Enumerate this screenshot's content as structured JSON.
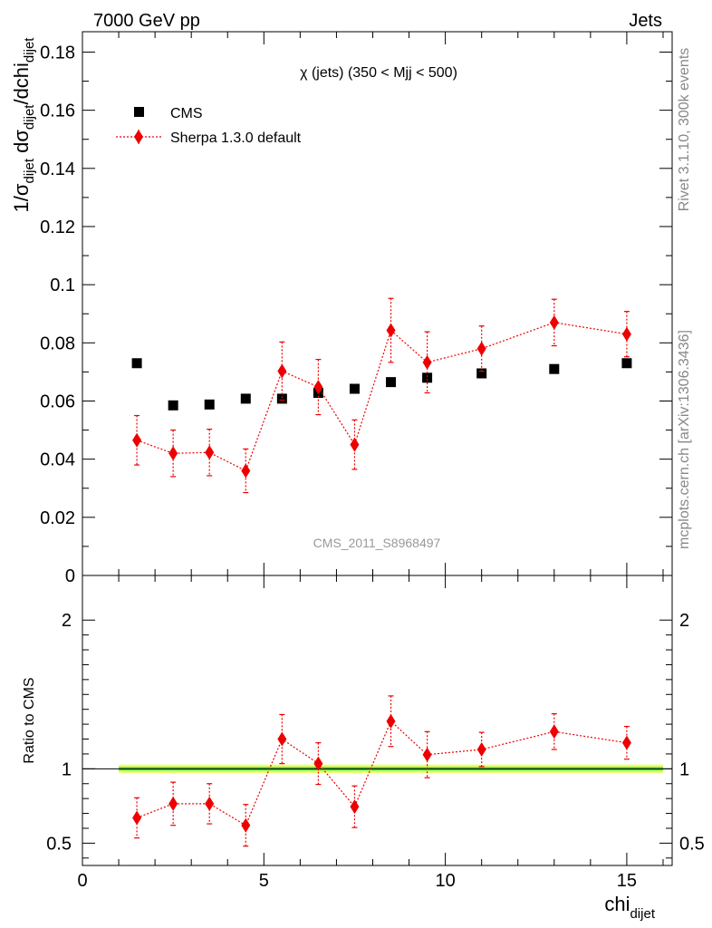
{
  "header": {
    "energy_label": "7000 GeV pp",
    "category_label": "Jets"
  },
  "side_labels": {
    "rivet": "Rivet 3.1.10,  300k events",
    "source": "mcplots.cern.ch [arXiv:1306.3436]"
  },
  "chart_data": [
    {
      "type": "scatter",
      "title": "χ (jets) (350 < Mjj <  500)",
      "watermark": "CMS_2011_S8968497",
      "ylabel_parts": {
        "p1": "1/σ",
        "s1": "dijet",
        "p2": " dσ",
        "s2": "dijet",
        "p3": "/dchi",
        "s3": "dijet"
      },
      "xlim": [
        0,
        16.25
      ],
      "ylim": [
        0,
        0.187
      ],
      "y_ticks": [
        0,
        0.02,
        0.04,
        0.06,
        0.08,
        0.1,
        0.12,
        0.14,
        0.16,
        0.18
      ],
      "y_tick_labels": [
        "0",
        "0.02",
        "0.04",
        "0.06",
        "0.08",
        "0.1",
        "0.12",
        "0.14",
        "0.16",
        "0.18"
      ],
      "legend_position": "top-left",
      "series": [
        {
          "name": "CMS",
          "color": "#000000",
          "marker": "square",
          "x": [
            1.5,
            2.5,
            3.5,
            4.5,
            5.5,
            6.5,
            7.5,
            8.5,
            9.5,
            11.0,
            13.0,
            15.0
          ],
          "y": [
            0.073,
            0.0585,
            0.0588,
            0.0608,
            0.0608,
            0.0628,
            0.0642,
            0.0665,
            0.068,
            0.0695,
            0.071,
            0.073
          ]
        },
        {
          "name": "Sherpa 1.3.0 default",
          "color": "#ee0000",
          "marker": "diamond",
          "line": "dotted",
          "x": [
            1.5,
            2.5,
            3.5,
            4.5,
            5.5,
            6.5,
            7.5,
            8.5,
            9.5,
            11.0,
            13.0,
            15.0
          ],
          "y": [
            0.0465,
            0.042,
            0.0423,
            0.036,
            0.0703,
            0.0648,
            0.045,
            0.0843,
            0.0733,
            0.078,
            0.087,
            0.083
          ],
          "err": [
            0.0085,
            0.008,
            0.008,
            0.0075,
            0.01,
            0.0095,
            0.0085,
            0.011,
            0.0105,
            0.0078,
            0.008,
            0.0078
          ]
        }
      ]
    },
    {
      "type": "scatter",
      "ylabel": "Ratio to CMS",
      "xlabel_main": "chi",
      "xlabel_sub": "dijet",
      "xlim": [
        0,
        16.25
      ],
      "ylim": [
        0.35,
        2.3
      ],
      "x_ticks": [
        0,
        5,
        10,
        15
      ],
      "x_tick_labels": [
        "0",
        "5",
        "10",
        "15"
      ],
      "y_ticks": [
        0.5,
        1,
        2
      ],
      "y_tick_labels": [
        "0.5",
        "1",
        "2"
      ],
      "reference_line": 1,
      "band": {
        "x_range": [
          1.0,
          16.0
        ],
        "inner_halfwidth": 0.012,
        "outer_halfwidth": 0.028,
        "inner_color": "#44dd44",
        "outer_color": "#eeff66"
      },
      "series": [
        {
          "name": "Sherpa 1.3.0 default",
          "color": "#ee0000",
          "x": [
            1.5,
            2.5,
            3.5,
            4.5,
            5.5,
            6.5,
            7.5,
            8.5,
            9.5,
            11.0,
            13.0,
            15.0
          ],
          "y": [
            0.67,
            0.765,
            0.765,
            0.62,
            1.2,
            1.035,
            0.745,
            1.32,
            1.095,
            1.13,
            1.25,
            1.175
          ],
          "err": [
            0.135,
            0.145,
            0.135,
            0.14,
            0.165,
            0.14,
            0.14,
            0.17,
            0.155,
            0.115,
            0.12,
            0.11
          ]
        }
      ]
    }
  ]
}
